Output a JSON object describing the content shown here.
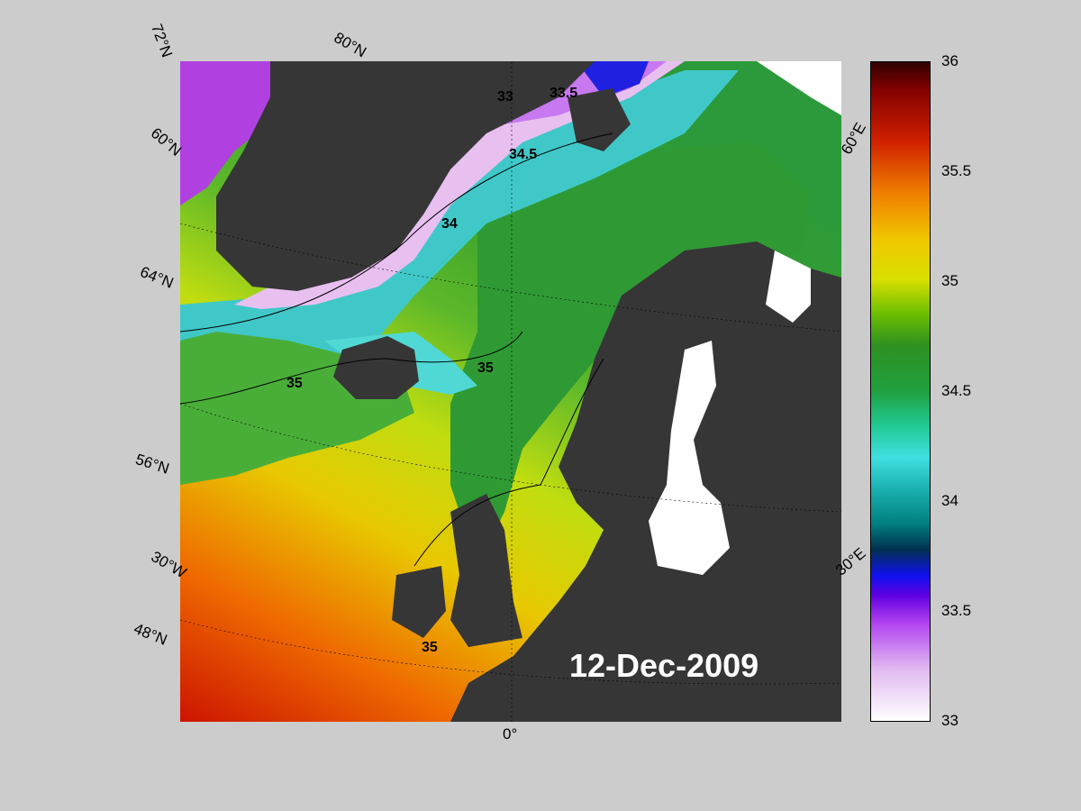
{
  "map": {
    "date": "12-Dec-2009",
    "latitude_labels": [
      "72°N",
      "60°N",
      "64°N",
      "56°N",
      "48°N"
    ],
    "longitude_labels": [
      "80°N",
      "60°E",
      "30°E",
      "30°W",
      "0°"
    ],
    "contour_labels": [
      "33",
      "33.5",
      "34",
      "34.5",
      "35"
    ],
    "colors": {
      "land": "#363636",
      "ice": "#ffffff",
      "background": "#cccccc"
    }
  },
  "colorbar": {
    "min": 33,
    "max": 36,
    "ticks": [
      "36",
      "35.5",
      "35",
      "34.5",
      "34",
      "33.5",
      "33"
    ]
  }
}
